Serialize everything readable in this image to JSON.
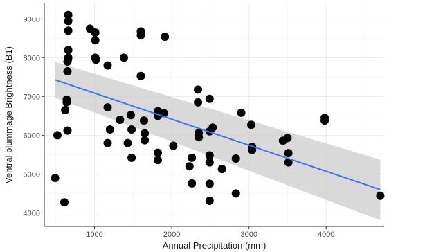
{
  "chart_data": {
    "type": "scatter",
    "title": "",
    "xlabel": "Annual Precipitation (mm)",
    "ylabel": "Ventral plummage Brightness (B1)",
    "xlim": [
      350,
      4750
    ],
    "ylim": [
      3650,
      9400
    ],
    "x_ticks": [
      1000,
      2000,
      3000,
      4000
    ],
    "y_ticks": [
      4000,
      5000,
      6000,
      7000,
      8000,
      9000
    ],
    "x_tick_labels": [
      "1000",
      "2000",
      "3000",
      "4000"
    ],
    "y_tick_labels": [
      "4000",
      "5000",
      "6000",
      "7000",
      "8000",
      "9000"
    ],
    "grid": true,
    "point_color": "#000000",
    "trend": {
      "type": "linear",
      "color": "#3a78e8",
      "x": [
        490,
        4700
      ],
      "y": [
        7430,
        4600
      ],
      "ci_color": "#cccccc",
      "ci_lower": [
        6970,
        3810
      ],
      "ci_upper": [
        7890,
        5370
      ]
    },
    "points": [
      [
        490,
        4900
      ],
      [
        520,
        6000
      ],
      [
        610,
        4270
      ],
      [
        620,
        6650
      ],
      [
        640,
        6850
      ],
      [
        640,
        6920
      ],
      [
        650,
        6120
      ],
      [
        650,
        7650
      ],
      [
        650,
        7900
      ],
      [
        655,
        7950
      ],
      [
        660,
        8000
      ],
      [
        660,
        8200
      ],
      [
        660,
        8700
      ],
      [
        660,
        8950
      ],
      [
        660,
        9100
      ],
      [
        940,
        8750
      ],
      [
        1010,
        8650
      ],
      [
        1010,
        8450
      ],
      [
        1010,
        8000
      ],
      [
        1020,
        7950
      ],
      [
        1170,
        7800
      ],
      [
        1170,
        6720
      ],
      [
        1170,
        5800
      ],
      [
        1200,
        6150
      ],
      [
        1330,
        6400
      ],
      [
        1380,
        8000
      ],
      [
        1430,
        5800
      ],
      [
        1470,
        6520
      ],
      [
        1480,
        6150
      ],
      [
        1480,
        5420
      ],
      [
        1600,
        8680
      ],
      [
        1600,
        8580
      ],
      [
        1600,
        7530
      ],
      [
        1640,
        6380
      ],
      [
        1650,
        6050
      ],
      [
        1650,
        5870
      ],
      [
        1820,
        6620
      ],
      [
        1820,
        6500
      ],
      [
        1820,
        5550
      ],
      [
        1820,
        5360
      ],
      [
        1900,
        6570
      ],
      [
        1910,
        8540
      ],
      [
        2020,
        5730
      ],
      [
        2230,
        5200
      ],
      [
        2260,
        5420
      ],
      [
        2260,
        4760
      ],
      [
        2340,
        7180
      ],
      [
        2340,
        6850
      ],
      [
        2350,
        6060
      ],
      [
        2350,
        5950
      ],
      [
        2490,
        6940
      ],
      [
        2490,
        6100
      ],
      [
        2490,
        5480
      ],
      [
        2490,
        5300
      ],
      [
        2490,
        4750
      ],
      [
        2490,
        4310
      ],
      [
        2530,
        6200
      ],
      [
        2650,
        5130
      ],
      [
        2830,
        5400
      ],
      [
        2830,
        4500
      ],
      [
        2900,
        6580
      ],
      [
        3030,
        6270
      ],
      [
        3040,
        5700
      ],
      [
        3040,
        5620
      ],
      [
        3440,
        5860
      ],
      [
        3500,
        5930
      ],
      [
        3510,
        5540
      ],
      [
        3510,
        5300
      ],
      [
        3980,
        6450
      ],
      [
        3980,
        6380
      ],
      [
        4700,
        4440
      ]
    ]
  }
}
